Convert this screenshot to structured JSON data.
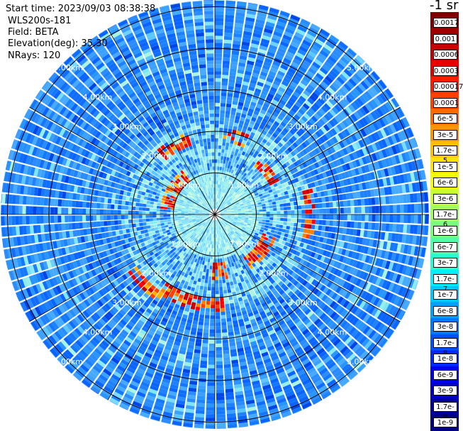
{
  "header": {
    "start_time": "Start time: 2023/09/03 08:38:38",
    "instrument": "WLS200s-181",
    "field": "Field: BETA",
    "elevation": "Elevation(deg): 35.30",
    "nrays": "NRays: 120"
  },
  "colorbar": {
    "unit": "-1 sr",
    "labels": [
      "0.0017",
      "0.001",
      "0.0006",
      "0.0003",
      "0.00017",
      "0.0001",
      "6e-5",
      "3e-5",
      "1.7e-5",
      "1e-5",
      "6e-6",
      "3e-6",
      "1.7e-6",
      "1e-6",
      "6e-7",
      "3e-7",
      "1.7e-7",
      "1e-7",
      "6e-8",
      "3e-8",
      "1.7e-8",
      "1e-8",
      "6e-9",
      "3e-9",
      "1.7e-9",
      "1e-9"
    ],
    "colors": [
      "#7f0000",
      "#a00000",
      "#c80000",
      "#e60000",
      "#ff1a00",
      "#ff4000",
      "#ff6a00",
      "#ff9400",
      "#ffbe00",
      "#ffe400",
      "#f2ff0a",
      "#c8ff30",
      "#a0ff58",
      "#78ff80",
      "#50ffa8",
      "#28ffd0",
      "#00f0ff",
      "#00c8ff",
      "#00a0ff",
      "#0078ff",
      "#0050ff",
      "#0028ff",
      "#0000f0",
      "#0000c8",
      "#0000a0",
      "#000080"
    ]
  },
  "range_rings": {
    "labels_ne": [
      "1.00km",
      "2.00km",
      "3.00km",
      "4.00km",
      "5.00km"
    ],
    "labels_nw": [
      "1.00km",
      "2.00km",
      "3.00km",
      "4.00km",
      "5.00km"
    ],
    "labels_se": [
      "1.00km",
      "2.00km",
      "3.00km",
      "4.00km",
      "5.00km"
    ],
    "labels_sw": [
      "1.00km",
      "2.00km",
      "3.00km",
      "4.00km",
      "5.00km"
    ]
  },
  "scan": {
    "nrays": 120,
    "max_range_km": 5.15
  }
}
